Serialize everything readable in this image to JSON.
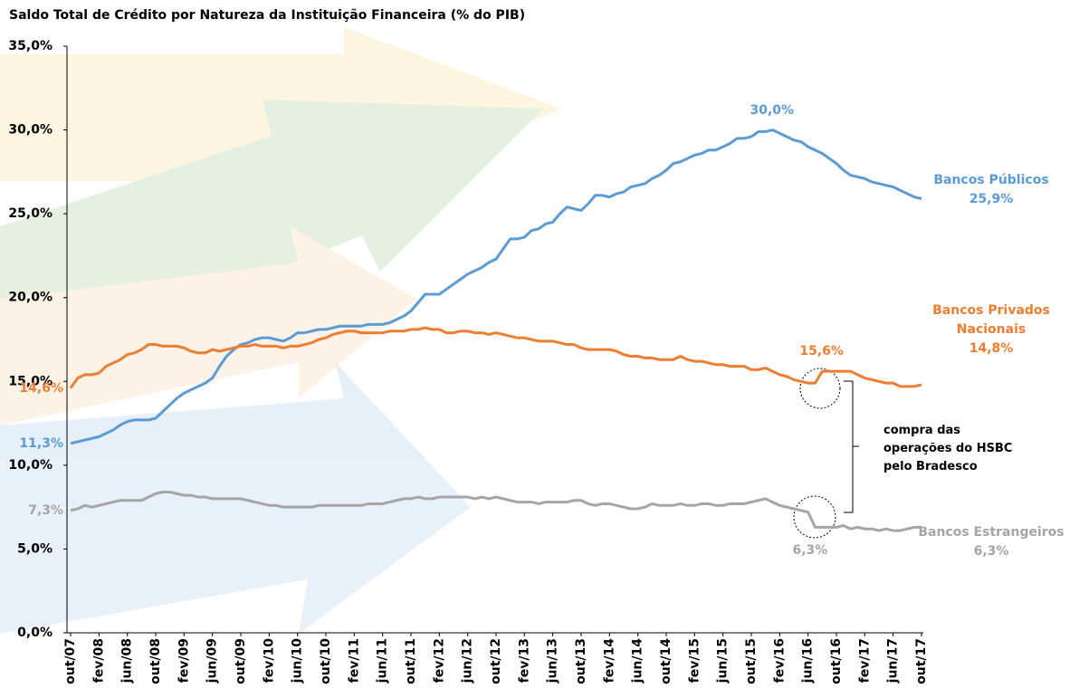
{
  "chart_data": {
    "type": "line",
    "title": "Saldo Total de Crédito por Natureza da Instituição Financeira (% do PIB)",
    "categories": [
      "out/07",
      null,
      null,
      null,
      "fev/08",
      null,
      null,
      null,
      "jun/08",
      null,
      null,
      null,
      "out/08",
      null,
      null,
      null,
      "fev/09",
      null,
      null,
      null,
      "jun/09",
      null,
      null,
      null,
      "out/09",
      null,
      null,
      null,
      "fev/10",
      null,
      null,
      null,
      "jun/10",
      null,
      null,
      null,
      "out/10",
      null,
      null,
      null,
      "fev/11",
      null,
      null,
      null,
      "jun/11",
      null,
      null,
      null,
      "out/11",
      null,
      null,
      null,
      "fev/12",
      null,
      null,
      null,
      "jun/12",
      null,
      null,
      null,
      "out/12",
      null,
      null,
      null,
      "fev/13",
      null,
      null,
      null,
      "jun/13",
      null,
      null,
      null,
      "out/13",
      null,
      null,
      null,
      "fev/14",
      null,
      null,
      null,
      "jun/14",
      null,
      null,
      null,
      "out/14",
      null,
      null,
      null,
      "fev/15",
      null,
      null,
      null,
      "jun/15",
      null,
      null,
      null,
      "out/15",
      null,
      null,
      null,
      "fev/16",
      null,
      null,
      null,
      "jun/16",
      null,
      null,
      null,
      "out/16",
      null,
      null,
      null,
      "fev/17",
      null,
      null,
      null,
      "jun/17",
      null,
      null,
      null,
      "out/17"
    ],
    "ylim": [
      0,
      35
    ],
    "yticks": [
      {
        "value": 0,
        "label": "0,0%"
      },
      {
        "value": 5,
        "label": "5,0%"
      },
      {
        "value": 10,
        "label": "10,0%"
      },
      {
        "value": 15,
        "label": "15,0%"
      },
      {
        "value": 20,
        "label": "20,0%"
      },
      {
        "value": 25,
        "label": "25,0%"
      },
      {
        "value": 30,
        "label": "30,0%"
      },
      {
        "value": 35,
        "label": "35,0%"
      }
    ],
    "grid": false,
    "series": [
      {
        "name": "Bancos Públicos",
        "color": "#5b9bd5",
        "values": [
          11.3,
          11.4,
          11.5,
          11.6,
          11.7,
          11.9,
          12.1,
          12.4,
          12.6,
          12.7,
          12.7,
          12.7,
          12.8,
          13.2,
          13.6,
          14.0,
          14.3,
          14.5,
          14.7,
          14.9,
          15.2,
          15.9,
          16.5,
          16.9,
          17.2,
          17.3,
          17.5,
          17.6,
          17.6,
          17.5,
          17.4,
          17.6,
          17.9,
          17.9,
          18.0,
          18.1,
          18.1,
          18.2,
          18.3,
          18.3,
          18.3,
          18.3,
          18.4,
          18.4,
          18.4,
          18.5,
          18.7,
          18.9,
          19.2,
          19.7,
          20.2,
          20.2,
          20.2,
          20.5,
          20.8,
          21.1,
          21.4,
          21.6,
          21.8,
          22.1,
          22.3,
          22.9,
          23.5,
          23.5,
          23.6,
          24.0,
          24.1,
          24.4,
          24.5,
          25.0,
          25.4,
          25.3,
          25.2,
          25.6,
          26.1,
          26.1,
          26.0,
          26.2,
          26.3,
          26.6,
          26.7,
          26.8,
          27.1,
          27.3,
          27.6,
          28.0,
          28.1,
          28.3,
          28.5,
          28.6,
          28.8,
          28.8,
          29.0,
          29.2,
          29.5,
          29.5,
          29.6,
          29.9,
          29.9,
          30.0,
          29.8,
          29.6,
          29.4,
          29.3,
          29.0,
          28.8,
          28.6,
          28.3,
          28.0,
          27.6,
          27.3,
          27.2,
          27.1,
          26.9,
          26.8,
          26.7,
          26.6,
          26.4,
          26.2,
          26.0,
          25.9
        ],
        "value_labels": {
          "0": "11,3%",
          "99": "30,0%",
          "120": "25,9%"
        }
      },
      {
        "name": "Bancos Privados Nacionais",
        "color": "#ed7d31",
        "values": [
          14.6,
          15.2,
          15.4,
          15.4,
          15.5,
          15.9,
          16.1,
          16.3,
          16.6,
          16.7,
          16.9,
          17.2,
          17.2,
          17.1,
          17.1,
          17.1,
          17.0,
          16.8,
          16.7,
          16.7,
          16.9,
          16.8,
          16.9,
          17.0,
          17.1,
          17.1,
          17.2,
          17.1,
          17.1,
          17.1,
          17.0,
          17.1,
          17.1,
          17.2,
          17.3,
          17.5,
          17.6,
          17.8,
          17.9,
          18.0,
          18.0,
          17.9,
          17.9,
          17.9,
          17.9,
          18.0,
          18.0,
          18.0,
          18.1,
          18.1,
          18.2,
          18.1,
          18.1,
          17.9,
          17.9,
          18.0,
          18.0,
          17.9,
          17.9,
          17.8,
          17.9,
          17.8,
          17.7,
          17.6,
          17.6,
          17.5,
          17.4,
          17.4,
          17.4,
          17.3,
          17.2,
          17.2,
          17.0,
          16.9,
          16.9,
          16.9,
          16.9,
          16.8,
          16.6,
          16.5,
          16.5,
          16.4,
          16.4,
          16.3,
          16.3,
          16.3,
          16.5,
          16.3,
          16.2,
          16.2,
          16.1,
          16.0,
          16.0,
          15.9,
          15.9,
          15.9,
          15.7,
          15.7,
          15.8,
          15.6,
          15.4,
          15.3,
          15.1,
          15.0,
          14.9,
          14.9,
          15.6,
          15.6,
          15.6,
          15.6,
          15.6,
          15.4,
          15.2,
          15.1,
          15.0,
          14.9,
          14.9,
          14.7,
          14.7,
          14.7,
          14.8
        ],
        "value_labels": {
          "0": "14,6%",
          "106": "15,6%",
          "120": "14,8%"
        }
      },
      {
        "name": "Bancos Estrangeiros",
        "color": "#a5a5a5",
        "values": [
          7.3,
          7.4,
          7.6,
          7.5,
          7.6,
          7.7,
          7.8,
          7.9,
          7.9,
          7.9,
          7.9,
          8.1,
          8.3,
          8.4,
          8.4,
          8.3,
          8.2,
          8.2,
          8.1,
          8.1,
          8.0,
          8.0,
          8.0,
          8.0,
          8.0,
          7.9,
          7.8,
          7.7,
          7.6,
          7.6,
          7.5,
          7.5,
          7.5,
          7.5,
          7.5,
          7.6,
          7.6,
          7.6,
          7.6,
          7.6,
          7.6,
          7.6,
          7.7,
          7.7,
          7.7,
          7.8,
          7.9,
          8.0,
          8.0,
          8.1,
          8.0,
          8.0,
          8.1,
          8.1,
          8.1,
          8.1,
          8.1,
          8.0,
          8.1,
          8.0,
          8.1,
          8.0,
          7.9,
          7.8,
          7.8,
          7.8,
          7.7,
          7.8,
          7.8,
          7.8,
          7.8,
          7.9,
          7.9,
          7.7,
          7.6,
          7.7,
          7.7,
          7.6,
          7.5,
          7.4,
          7.4,
          7.5,
          7.7,
          7.6,
          7.6,
          7.6,
          7.7,
          7.6,
          7.6,
          7.7,
          7.7,
          7.6,
          7.6,
          7.7,
          7.7,
          7.7,
          7.8,
          7.9,
          8.0,
          7.8,
          7.6,
          7.5,
          7.4,
          7.3,
          7.2,
          6.3,
          6.3,
          6.3,
          6.3,
          6.4,
          6.2,
          6.3,
          6.2,
          6.2,
          6.1,
          6.2,
          6.1,
          6.1,
          6.2,
          6.3,
          6.3
        ],
        "value_labels": {
          "0": "7,3%",
          "105": "6,3%",
          "120": "6,3%"
        }
      }
    ],
    "annotation": [
      "compra das",
      "operações do HSBC",
      "pelo Bradesco"
    ]
  }
}
